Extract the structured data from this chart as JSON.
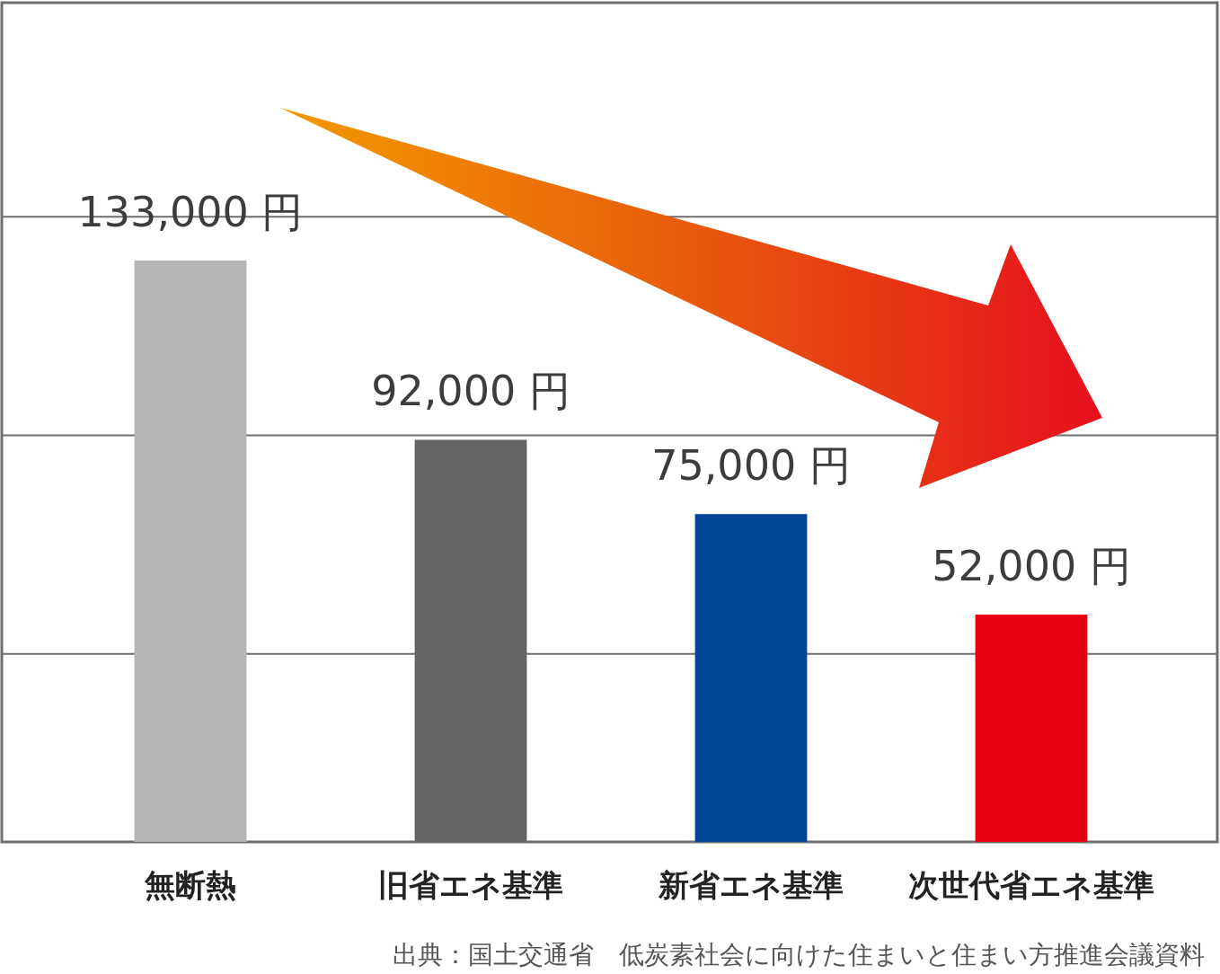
{
  "chart_data": {
    "type": "bar",
    "categories": [
      "無断熱",
      "旧省エネ基準",
      "新省エネ基準",
      "次世代省エネ基準"
    ],
    "values": [
      133000,
      92000,
      75000,
      52000
    ],
    "colors": [
      "#b4b5b6",
      "#646464",
      "#00469b",
      "#e60012"
    ],
    "value_labels": [
      "133,000 円",
      "92,000 円",
      "75,000 円",
      "52,000 円"
    ],
    "ylim": [
      0,
      192000
    ],
    "yticks": [
      {
        "value": 0,
        "label": null
      },
      {
        "value": 43000,
        "label": null
      },
      {
        "value": 93000,
        "label": null
      },
      {
        "value": 143000,
        "label": null
      }
    ],
    "grid": "y",
    "tick_labels": "x",
    "annotations": [
      "出典：国土交通省　低炭素社会に向けた住まいと住まい方推進会議資料"
    ]
  }
}
